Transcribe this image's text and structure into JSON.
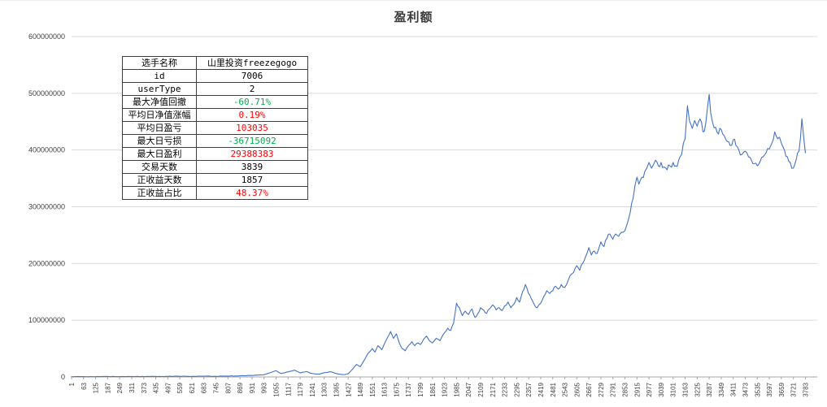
{
  "title": "盈利额",
  "colors": {
    "line": "#4472c4",
    "grid": "#d9d9d9",
    "axis": "#a6a6a6",
    "tick_text": "#3f3f3f",
    "red": "#ff0000",
    "green": "#00b050",
    "table_border": "#3f3f3f"
  },
  "stats_table": {
    "rows": [
      {
        "label": "选手名称",
        "value": "山里投资freezegogo",
        "color": "black"
      },
      {
        "label": "id",
        "value": "7006",
        "color": "black"
      },
      {
        "label": "userType",
        "value": "2",
        "color": "black"
      },
      {
        "label": "最大净值回撤",
        "value": "-60.71%",
        "color": "green"
      },
      {
        "label": "平均日净值涨幅",
        "value": "0.19%",
        "color": "red"
      },
      {
        "label": "平均日盈亏",
        "value": "103035",
        "color": "red"
      },
      {
        "label": "最大日亏损",
        "value": "-36715092",
        "color": "green"
      },
      {
        "label": "最大日盈利",
        "value": "29388383",
        "color": "red"
      },
      {
        "label": "交易天数",
        "value": "3839",
        "color": "black"
      },
      {
        "label": "正收益天数",
        "value": "1857",
        "color": "black"
      },
      {
        "label": "正收益占比",
        "value": "48.37%",
        "color": "red"
      }
    ]
  },
  "chart_data": {
    "type": "line",
    "title": "盈利额",
    "xlabel": "",
    "ylabel": "",
    "ylim": [
      0,
      600000000
    ],
    "y_tick_step": 100000000,
    "x_range": [
      1,
      3844
    ],
    "grid": "horizontal",
    "legend": "none",
    "x_tick_labels": [
      1,
      63,
      125,
      187,
      249,
      311,
      373,
      435,
      497,
      559,
      621,
      683,
      745,
      807,
      869,
      931,
      993,
      1055,
      1117,
      1179,
      1241,
      1303,
      1365,
      1427,
      1489,
      1551,
      1613,
      1675,
      1737,
      1799,
      1861,
      1923,
      1985,
      2047,
      2109,
      2171,
      2233,
      2295,
      2357,
      2419,
      2481,
      2543,
      2605,
      2667,
      2729,
      2791,
      2853,
      2915,
      2977,
      3039,
      3101,
      3163,
      3225,
      3287,
      3349,
      3411,
      3473,
      3535,
      3597,
      3659,
      3721,
      3783
    ],
    "series": [
      {
        "name": "盈利额",
        "color": "#4472c4",
        "points": [
          [
            1,
            400000
          ],
          [
            60,
            600000
          ],
          [
            125,
            500000
          ],
          [
            187,
            800000
          ],
          [
            249,
            600000
          ],
          [
            311,
            900000
          ],
          [
            373,
            700000
          ],
          [
            435,
            1000000
          ],
          [
            497,
            900000
          ],
          [
            559,
            1200000
          ],
          [
            621,
            1000000
          ],
          [
            683,
            1400000
          ],
          [
            745,
            1200000
          ],
          [
            807,
            1600000
          ],
          [
            869,
            2000000
          ],
          [
            931,
            2600000
          ],
          [
            993,
            4000000
          ],
          [
            1030,
            8000000
          ],
          [
            1055,
            11000000
          ],
          [
            1080,
            6000000
          ],
          [
            1117,
            9000000
          ],
          [
            1150,
            12000000
          ],
          [
            1180,
            7000000
          ],
          [
            1210,
            9500000
          ],
          [
            1241,
            6000000
          ],
          [
            1280,
            5000000
          ],
          [
            1303,
            7500000
          ],
          [
            1340,
            9000000
          ],
          [
            1365,
            6000000
          ],
          [
            1400,
            4000000
          ],
          [
            1427,
            6000000
          ],
          [
            1450,
            14000000
          ],
          [
            1470,
            22000000
          ],
          [
            1489,
            18000000
          ],
          [
            1510,
            30000000
          ],
          [
            1530,
            42000000
          ],
          [
            1551,
            50000000
          ],
          [
            1565,
            44000000
          ],
          [
            1580,
            55000000
          ],
          [
            1600,
            48000000
          ],
          [
            1613,
            58000000
          ],
          [
            1630,
            70000000
          ],
          [
            1645,
            80000000
          ],
          [
            1660,
            68000000
          ],
          [
            1675,
            76000000
          ],
          [
            1690,
            60000000
          ],
          [
            1705,
            50000000
          ],
          [
            1720,
            46000000
          ],
          [
            1737,
            55000000
          ],
          [
            1755,
            62000000
          ],
          [
            1770,
            55000000
          ],
          [
            1785,
            60000000
          ],
          [
            1799,
            57000000
          ],
          [
            1815,
            66000000
          ],
          [
            1830,
            72000000
          ],
          [
            1845,
            64000000
          ],
          [
            1861,
            60000000
          ],
          [
            1880,
            68000000
          ],
          [
            1900,
            64000000
          ],
          [
            1923,
            78000000
          ],
          [
            1940,
            86000000
          ],
          [
            1955,
            82000000
          ],
          [
            1970,
            95000000
          ],
          [
            1985,
            130000000
          ],
          [
            2000,
            122000000
          ],
          [
            2015,
            108000000
          ],
          [
            2030,
            116000000
          ],
          [
            2047,
            110000000
          ],
          [
            2065,
            120000000
          ],
          [
            2080,
            105000000
          ],
          [
            2095,
            112000000
          ],
          [
            2109,
            122000000
          ],
          [
            2125,
            118000000
          ],
          [
            2140,
            112000000
          ],
          [
            2155,
            120000000
          ],
          [
            2171,
            127000000
          ],
          [
            2190,
            118000000
          ],
          [
            2205,
            122000000
          ],
          [
            2220,
            117000000
          ],
          [
            2233,
            125000000
          ],
          [
            2250,
            132000000
          ],
          [
            2265,
            122000000
          ],
          [
            2280,
            128000000
          ],
          [
            2295,
            140000000
          ],
          [
            2310,
            132000000
          ],
          [
            2325,
            150000000
          ],
          [
            2340,
            163000000
          ],
          [
            2355,
            148000000
          ],
          [
            2370,
            138000000
          ],
          [
            2385,
            128000000
          ],
          [
            2400,
            122000000
          ],
          [
            2419,
            130000000
          ],
          [
            2435,
            142000000
          ],
          [
            2450,
            152000000
          ],
          [
            2465,
            147000000
          ],
          [
            2481,
            152000000
          ],
          [
            2495,
            160000000
          ],
          [
            2510,
            155000000
          ],
          [
            2525,
            163000000
          ],
          [
            2543,
            158000000
          ],
          [
            2560,
            170000000
          ],
          [
            2580,
            182000000
          ],
          [
            2605,
            196000000
          ],
          [
            2620,
            188000000
          ],
          [
            2635,
            200000000
          ],
          [
            2650,
            212000000
          ],
          [
            2667,
            228000000
          ],
          [
            2680,
            215000000
          ],
          [
            2695,
            222000000
          ],
          [
            2710,
            218000000
          ],
          [
            2729,
            238000000
          ],
          [
            2745,
            230000000
          ],
          [
            2760,
            244000000
          ],
          [
            2775,
            252000000
          ],
          [
            2791,
            243000000
          ],
          [
            2805,
            252000000
          ],
          [
            2820,
            248000000
          ],
          [
            2835,
            255000000
          ],
          [
            2853,
            258000000
          ],
          [
            2865,
            270000000
          ],
          [
            2880,
            290000000
          ],
          [
            2895,
            315000000
          ],
          [
            2915,
            352000000
          ],
          [
            2925,
            340000000
          ],
          [
            2940,
            352000000
          ],
          [
            2955,
            362000000
          ],
          [
            2977,
            378000000
          ],
          [
            2990,
            368000000
          ],
          [
            3000,
            374000000
          ],
          [
            3010,
            382000000
          ],
          [
            3025,
            372000000
          ],
          [
            3039,
            378000000
          ],
          [
            3055,
            370000000
          ],
          [
            3070,
            365000000
          ],
          [
            3085,
            372000000
          ],
          [
            3101,
            378000000
          ],
          [
            3115,
            372000000
          ],
          [
            3130,
            382000000
          ],
          [
            3145,
            392000000
          ],
          [
            3163,
            420000000
          ],
          [
            3175,
            478000000
          ],
          [
            3185,
            452000000
          ],
          [
            3200,
            438000000
          ],
          [
            3212,
            452000000
          ],
          [
            3225,
            442000000
          ],
          [
            3240,
            455000000
          ],
          [
            3255,
            432000000
          ],
          [
            3270,
            448000000
          ],
          [
            3287,
            498000000
          ],
          [
            3295,
            465000000
          ],
          [
            3305,
            448000000
          ],
          [
            3320,
            440000000
          ],
          [
            3335,
            428000000
          ],
          [
            3349,
            436000000
          ],
          [
            3365,
            425000000
          ],
          [
            3380,
            415000000
          ],
          [
            3395,
            408000000
          ],
          [
            3411,
            418000000
          ],
          [
            3425,
            408000000
          ],
          [
            3440,
            400000000
          ],
          [
            3455,
            392000000
          ],
          [
            3473,
            398000000
          ],
          [
            3490,
            388000000
          ],
          [
            3505,
            382000000
          ],
          [
            3520,
            376000000
          ],
          [
            3535,
            372000000
          ],
          [
            3550,
            380000000
          ],
          [
            3565,
            388000000
          ],
          [
            3580,
            395000000
          ],
          [
            3597,
            402000000
          ],
          [
            3610,
            412000000
          ],
          [
            3625,
            432000000
          ],
          [
            3640,
            420000000
          ],
          [
            3659,
            412000000
          ],
          [
            3675,
            400000000
          ],
          [
            3690,
            388000000
          ],
          [
            3705,
            378000000
          ],
          [
            3721,
            368000000
          ],
          [
            3735,
            382000000
          ],
          [
            3750,
            398000000
          ],
          [
            3765,
            455000000
          ],
          [
            3775,
            420000000
          ],
          [
            3783,
            395000000
          ]
        ]
      }
    ]
  }
}
